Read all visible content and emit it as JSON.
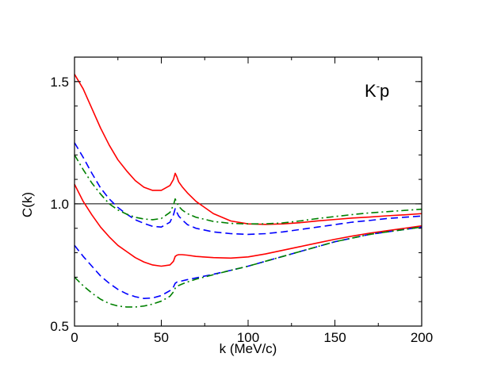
{
  "chart_data": {
    "type": "line",
    "title": "",
    "annotation": {
      "base": "K",
      "sup": "-",
      "tail": "p"
    },
    "xlabel": "k (MeV/c)",
    "ylabel": "C(k)",
    "xlim": [
      0,
      200
    ],
    "ylim": [
      0.5,
      1.6
    ],
    "xticks": [
      0,
      50,
      100,
      150,
      200
    ],
    "xtick_labels": [
      "0",
      "50",
      "100",
      "150",
      "200"
    ],
    "yticks": [
      0.5,
      1.0,
      1.5
    ],
    "ytick_labels": [
      "0.5",
      "1.0",
      "1.5"
    ],
    "reference_line": {
      "y": 1.0,
      "color": "#000000"
    },
    "series": [
      {
        "name": "red-solid-upper",
        "color": "#ff0000",
        "style": "solid",
        "x": [
          0,
          5,
          10,
          15,
          20,
          25,
          30,
          35,
          40,
          45,
          50,
          55,
          57,
          58,
          59,
          60,
          62,
          65,
          70,
          80,
          90,
          100,
          110,
          120,
          130,
          140,
          150,
          160,
          170,
          180,
          190,
          200
        ],
        "y": [
          1.53,
          1.47,
          1.39,
          1.31,
          1.24,
          1.18,
          1.135,
          1.095,
          1.068,
          1.055,
          1.055,
          1.075,
          1.1,
          1.125,
          1.11,
          1.09,
          1.07,
          1.045,
          1.01,
          0.96,
          0.93,
          0.918,
          0.916,
          0.918,
          0.923,
          0.93,
          0.936,
          0.942,
          0.946,
          0.951,
          0.955,
          0.96
        ]
      },
      {
        "name": "red-solid-lower",
        "color": "#ff0000",
        "style": "solid",
        "x": [
          0,
          5,
          10,
          15,
          20,
          25,
          30,
          35,
          40,
          45,
          50,
          55,
          57,
          58,
          59,
          60,
          62,
          65,
          70,
          80,
          90,
          100,
          110,
          120,
          130,
          140,
          150,
          160,
          170,
          180,
          190,
          200
        ],
        "y": [
          1.08,
          1.01,
          0.955,
          0.905,
          0.865,
          0.83,
          0.805,
          0.78,
          0.762,
          0.75,
          0.745,
          0.75,
          0.765,
          0.785,
          0.79,
          0.792,
          0.792,
          0.79,
          0.785,
          0.78,
          0.778,
          0.783,
          0.795,
          0.81,
          0.825,
          0.84,
          0.855,
          0.868,
          0.88,
          0.89,
          0.9,
          0.91
        ]
      },
      {
        "name": "blue-dashed-upper",
        "color": "#0000ff",
        "style": "dashed",
        "x": [
          0,
          5,
          10,
          15,
          20,
          25,
          30,
          35,
          40,
          45,
          50,
          55,
          57,
          58,
          59,
          60,
          62,
          65,
          70,
          80,
          90,
          100,
          110,
          120,
          130,
          140,
          150,
          160,
          170,
          180,
          190,
          200
        ],
        "y": [
          1.25,
          1.19,
          1.125,
          1.065,
          1.02,
          0.985,
          0.958,
          0.935,
          0.92,
          0.908,
          0.905,
          0.925,
          0.955,
          0.98,
          0.965,
          0.95,
          0.935,
          0.915,
          0.9,
          0.885,
          0.878,
          0.875,
          0.878,
          0.885,
          0.895,
          0.905,
          0.915,
          0.925,
          0.932,
          0.94,
          0.945,
          0.95
        ]
      },
      {
        "name": "blue-dashed-lower",
        "color": "#0000ff",
        "style": "dashed",
        "x": [
          0,
          5,
          10,
          15,
          20,
          25,
          30,
          35,
          40,
          45,
          50,
          55,
          57,
          58,
          59,
          60,
          62,
          65,
          70,
          80,
          90,
          100,
          110,
          120,
          130,
          140,
          150,
          160,
          170,
          180,
          190,
          200
        ],
        "y": [
          0.83,
          0.785,
          0.745,
          0.705,
          0.675,
          0.65,
          0.632,
          0.62,
          0.613,
          0.615,
          0.625,
          0.645,
          0.66,
          0.675,
          0.68,
          0.683,
          0.685,
          0.69,
          0.697,
          0.712,
          0.728,
          0.745,
          0.765,
          0.785,
          0.805,
          0.825,
          0.845,
          0.86,
          0.875,
          0.885,
          0.895,
          0.905
        ]
      },
      {
        "name": "green-dashdot-upper",
        "color": "#008000",
        "style": "dashdot",
        "x": [
          0,
          5,
          10,
          15,
          20,
          25,
          30,
          35,
          40,
          45,
          50,
          55,
          57,
          58,
          59,
          60,
          62,
          65,
          70,
          80,
          90,
          100,
          110,
          120,
          130,
          140,
          150,
          160,
          170,
          180,
          190,
          200
        ],
        "y": [
          1.2,
          1.14,
          1.085,
          1.04,
          1.0,
          0.975,
          0.958,
          0.945,
          0.938,
          0.935,
          0.94,
          0.965,
          0.995,
          1.02,
          1.005,
          0.99,
          0.975,
          0.96,
          0.945,
          0.928,
          0.92,
          0.918,
          0.918,
          0.922,
          0.93,
          0.94,
          0.948,
          0.956,
          0.963,
          0.968,
          0.973,
          0.978
        ]
      },
      {
        "name": "green-dashdot-lower",
        "color": "#008000",
        "style": "dashdot",
        "x": [
          0,
          5,
          10,
          15,
          20,
          25,
          30,
          35,
          40,
          45,
          50,
          55,
          57,
          58,
          59,
          60,
          62,
          65,
          70,
          80,
          90,
          100,
          110,
          120,
          130,
          140,
          150,
          160,
          170,
          180,
          190,
          200
        ],
        "y": [
          0.7,
          0.665,
          0.635,
          0.61,
          0.592,
          0.582,
          0.578,
          0.578,
          0.582,
          0.59,
          0.602,
          0.622,
          0.64,
          0.655,
          0.662,
          0.666,
          0.672,
          0.68,
          0.692,
          0.71,
          0.728,
          0.745,
          0.765,
          0.785,
          0.805,
          0.825,
          0.845,
          0.86,
          0.875,
          0.885,
          0.895,
          0.905
        ]
      }
    ]
  }
}
